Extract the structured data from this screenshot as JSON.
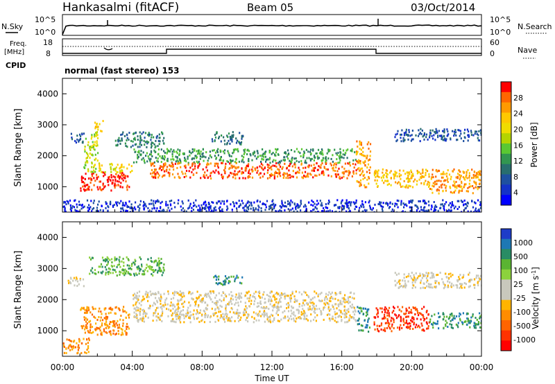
{
  "header": {
    "station": "Hankasalmi (fitACF)",
    "beam": "Beam 05",
    "date": "03/Oct/2014"
  },
  "noise_panel": {
    "left_label": "N.Sky",
    "right_label": "N.Search",
    "left_ticks": [
      "10^5",
      "10^0"
    ],
    "right_ticks": [
      "10^5",
      "10^0"
    ]
  },
  "freq_panel": {
    "left_label_line1": "Freq.",
    "left_label_line2": "[MHz]",
    "right_label": "Nave",
    "left_ticks": [
      "18",
      "8"
    ],
    "right_ticks": [
      "60",
      "0"
    ],
    "cpid_label": "CPID",
    "cpid_text": "normal (fast stereo) 153"
  },
  "chart_data": [
    {
      "type": "heatmap",
      "title": "",
      "xlabel": "",
      "ylabel": "Slant Range [km]",
      "x_range_hours": [
        0,
        24
      ],
      "ylim": [
        180,
        4500
      ],
      "y_ticks": [
        "1000",
        "2000",
        "3000",
        "4000"
      ],
      "colorbar": {
        "label": "Power [dB]",
        "ticks": [
          "28",
          "24",
          "20",
          "16",
          "12",
          "8",
          "4"
        ],
        "colors": [
          "#ff0000",
          "#ff6600",
          "#ff9a00",
          "#ffc800",
          "#f0dc00",
          "#b4d400",
          "#5ac832",
          "#329650",
          "#286e6e",
          "#1e50a0",
          "#1432c8",
          "#0000ff"
        ]
      },
      "bands": [
        {
          "x0": 0.3,
          "x1": 1.2,
          "y0": 2450,
          "y1": 2750,
          "level": 2
        },
        {
          "x0": 1.0,
          "x1": 3.8,
          "y0": 900,
          "y1": 1500,
          "level": 11
        },
        {
          "x0": 1.2,
          "x1": 2.0,
          "y0": 1500,
          "y1": 2800,
          "level": 6
        },
        {
          "x0": 1.8,
          "x1": 2.3,
          "y0": 2800,
          "y1": 3200,
          "level": 8
        },
        {
          "x0": 2.0,
          "x1": 4.0,
          "y0": 1500,
          "y1": 1800,
          "level": 7
        },
        {
          "x0": 3.0,
          "x1": 5.8,
          "y0": 2300,
          "y1": 2800,
          "level": 3
        },
        {
          "x0": 4.0,
          "x1": 16.8,
          "y0": 1800,
          "y1": 2250,
          "level": 4
        },
        {
          "x0": 5.0,
          "x1": 16.8,
          "y0": 1300,
          "y1": 1800,
          "level": 10
        },
        {
          "x0": 8.5,
          "x1": 10.3,
          "y0": 2400,
          "y1": 2800,
          "level": 3
        },
        {
          "x0": 16.8,
          "x1": 17.6,
          "y0": 1000,
          "y1": 2500,
          "level": 9
        },
        {
          "x0": 17.8,
          "x1": 21.0,
          "y0": 1000,
          "y1": 1600,
          "level": 8
        },
        {
          "x0": 19.0,
          "x1": 24.0,
          "y0": 2500,
          "y1": 2900,
          "level": 2
        },
        {
          "x0": 21.0,
          "x1": 24.0,
          "y0": 800,
          "y1": 1600,
          "level": 9
        },
        {
          "x0": 0.0,
          "x1": 24.0,
          "y0": 200,
          "y1": 600,
          "level": 1
        }
      ]
    },
    {
      "type": "heatmap",
      "title": "",
      "xlabel": "Time UT",
      "ylabel": "Slant Range [km]",
      "x_range_hours": [
        0,
        24
      ],
      "ylim": [
        180,
        4500
      ],
      "x_ticks": [
        "00:00",
        "04:00",
        "08:00",
        "12:00",
        "16:00",
        "20:00",
        "00:00"
      ],
      "y_ticks": [
        "1000",
        "2000",
        "3000",
        "4000"
      ],
      "colorbar": {
        "label": "Velocity [m s^-1]",
        "ticks": [
          "1000",
          "500",
          "100",
          "25",
          "-25",
          "-100",
          "-500",
          "-1000"
        ],
        "colors": [
          "#1e3cc8",
          "#1e78b4",
          "#288c64",
          "#5ab432",
          "#8cd23c",
          "#c8c8bc",
          "#c8c8bc",
          "#ffb400",
          "#ff8c00",
          "#ff6400",
          "#ff3200",
          "#ff0000"
        ]
      },
      "bands": [
        {
          "x0": 0.3,
          "x1": 1.2,
          "y0": 2450,
          "y1": 2750,
          "level": 5
        },
        {
          "x0": 1.0,
          "x1": 3.8,
          "y0": 900,
          "y1": 1800,
          "level": 3
        },
        {
          "x0": 1.5,
          "x1": 5.8,
          "y0": 2800,
          "y1": 3400,
          "level": 8
        },
        {
          "x0": 4.0,
          "x1": 16.8,
          "y0": 1300,
          "y1": 2300,
          "level": 5
        },
        {
          "x0": 8.5,
          "x1": 10.3,
          "y0": 2500,
          "y1": 2800,
          "level": 9
        },
        {
          "x0": 16.8,
          "x1": 17.6,
          "y0": 1000,
          "y1": 1800,
          "level": 9
        },
        {
          "x0": 17.8,
          "x1": 21.0,
          "y0": 1000,
          "y1": 1800,
          "level": 1
        },
        {
          "x0": 19.0,
          "x1": 24.0,
          "y0": 2400,
          "y1": 2900,
          "level": 5
        },
        {
          "x0": 21.0,
          "x1": 24.0,
          "y0": 1100,
          "y1": 1600,
          "level": 9
        },
        {
          "x0": 0.0,
          "x1": 1.5,
          "y0": 300,
          "y1": 800,
          "level": 3
        }
      ]
    }
  ]
}
